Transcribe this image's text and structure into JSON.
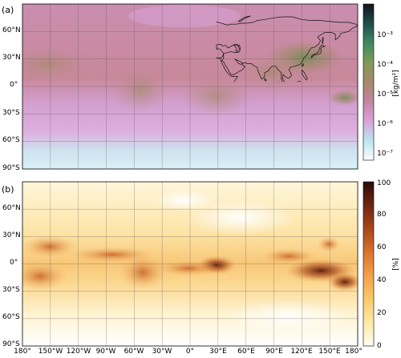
{
  "chart_data": [
    {
      "panel_label": "(a)",
      "type": "heatmap",
      "colorbar": {
        "label": "[kg/m²]",
        "scale": "log",
        "range": [
          1e-07,
          0.005
        ],
        "ticks": [
          "10⁻⁷",
          "10⁻⁶",
          "10⁻⁵",
          "10⁻⁴",
          "10⁻³"
        ],
        "colors": [
          "#ffffff",
          "#b9e6f0",
          "#d9a3d9",
          "#c285a2",
          "#a6896a",
          "#7f9b57",
          "#3f8a63",
          "#1f4e4c",
          "#10141c"
        ]
      },
      "lat_ticks": [
        "60°N",
        "30°N",
        "0°",
        "30°S",
        "60°S",
        "90°S"
      ],
      "lon_ticks": [
        "180°",
        "150°W",
        "120°W",
        "90°W",
        "60°W",
        "30°W",
        "0°",
        "30°E",
        "60°E",
        "90°E",
        "120°E",
        "150°E",
        "180°"
      ],
      "grid": true
    },
    {
      "panel_label": "(b)",
      "type": "heatmap",
      "colorbar": {
        "label": "[%]",
        "scale": "linear",
        "range": [
          0,
          100
        ],
        "ticks": [
          "0",
          "20",
          "40",
          "60",
          "80",
          "100"
        ],
        "colors": [
          "#fffef0",
          "#fde9a6",
          "#fbc96a",
          "#f3a14b",
          "#d8722c",
          "#a8471a",
          "#6f2610",
          "#2a0b06"
        ]
      },
      "lat_ticks": [
        "60°N",
        "30°N",
        "0°",
        "30°S",
        "60°S",
        "90°S"
      ],
      "lon_ticks": [
        "180°",
        "150°W",
        "120°W",
        "90°W",
        "60°W",
        "30°W",
        "0°",
        "30°E",
        "60°E",
        "90°E",
        "120°E",
        "150°E",
        "180°"
      ],
      "grid": true
    }
  ]
}
